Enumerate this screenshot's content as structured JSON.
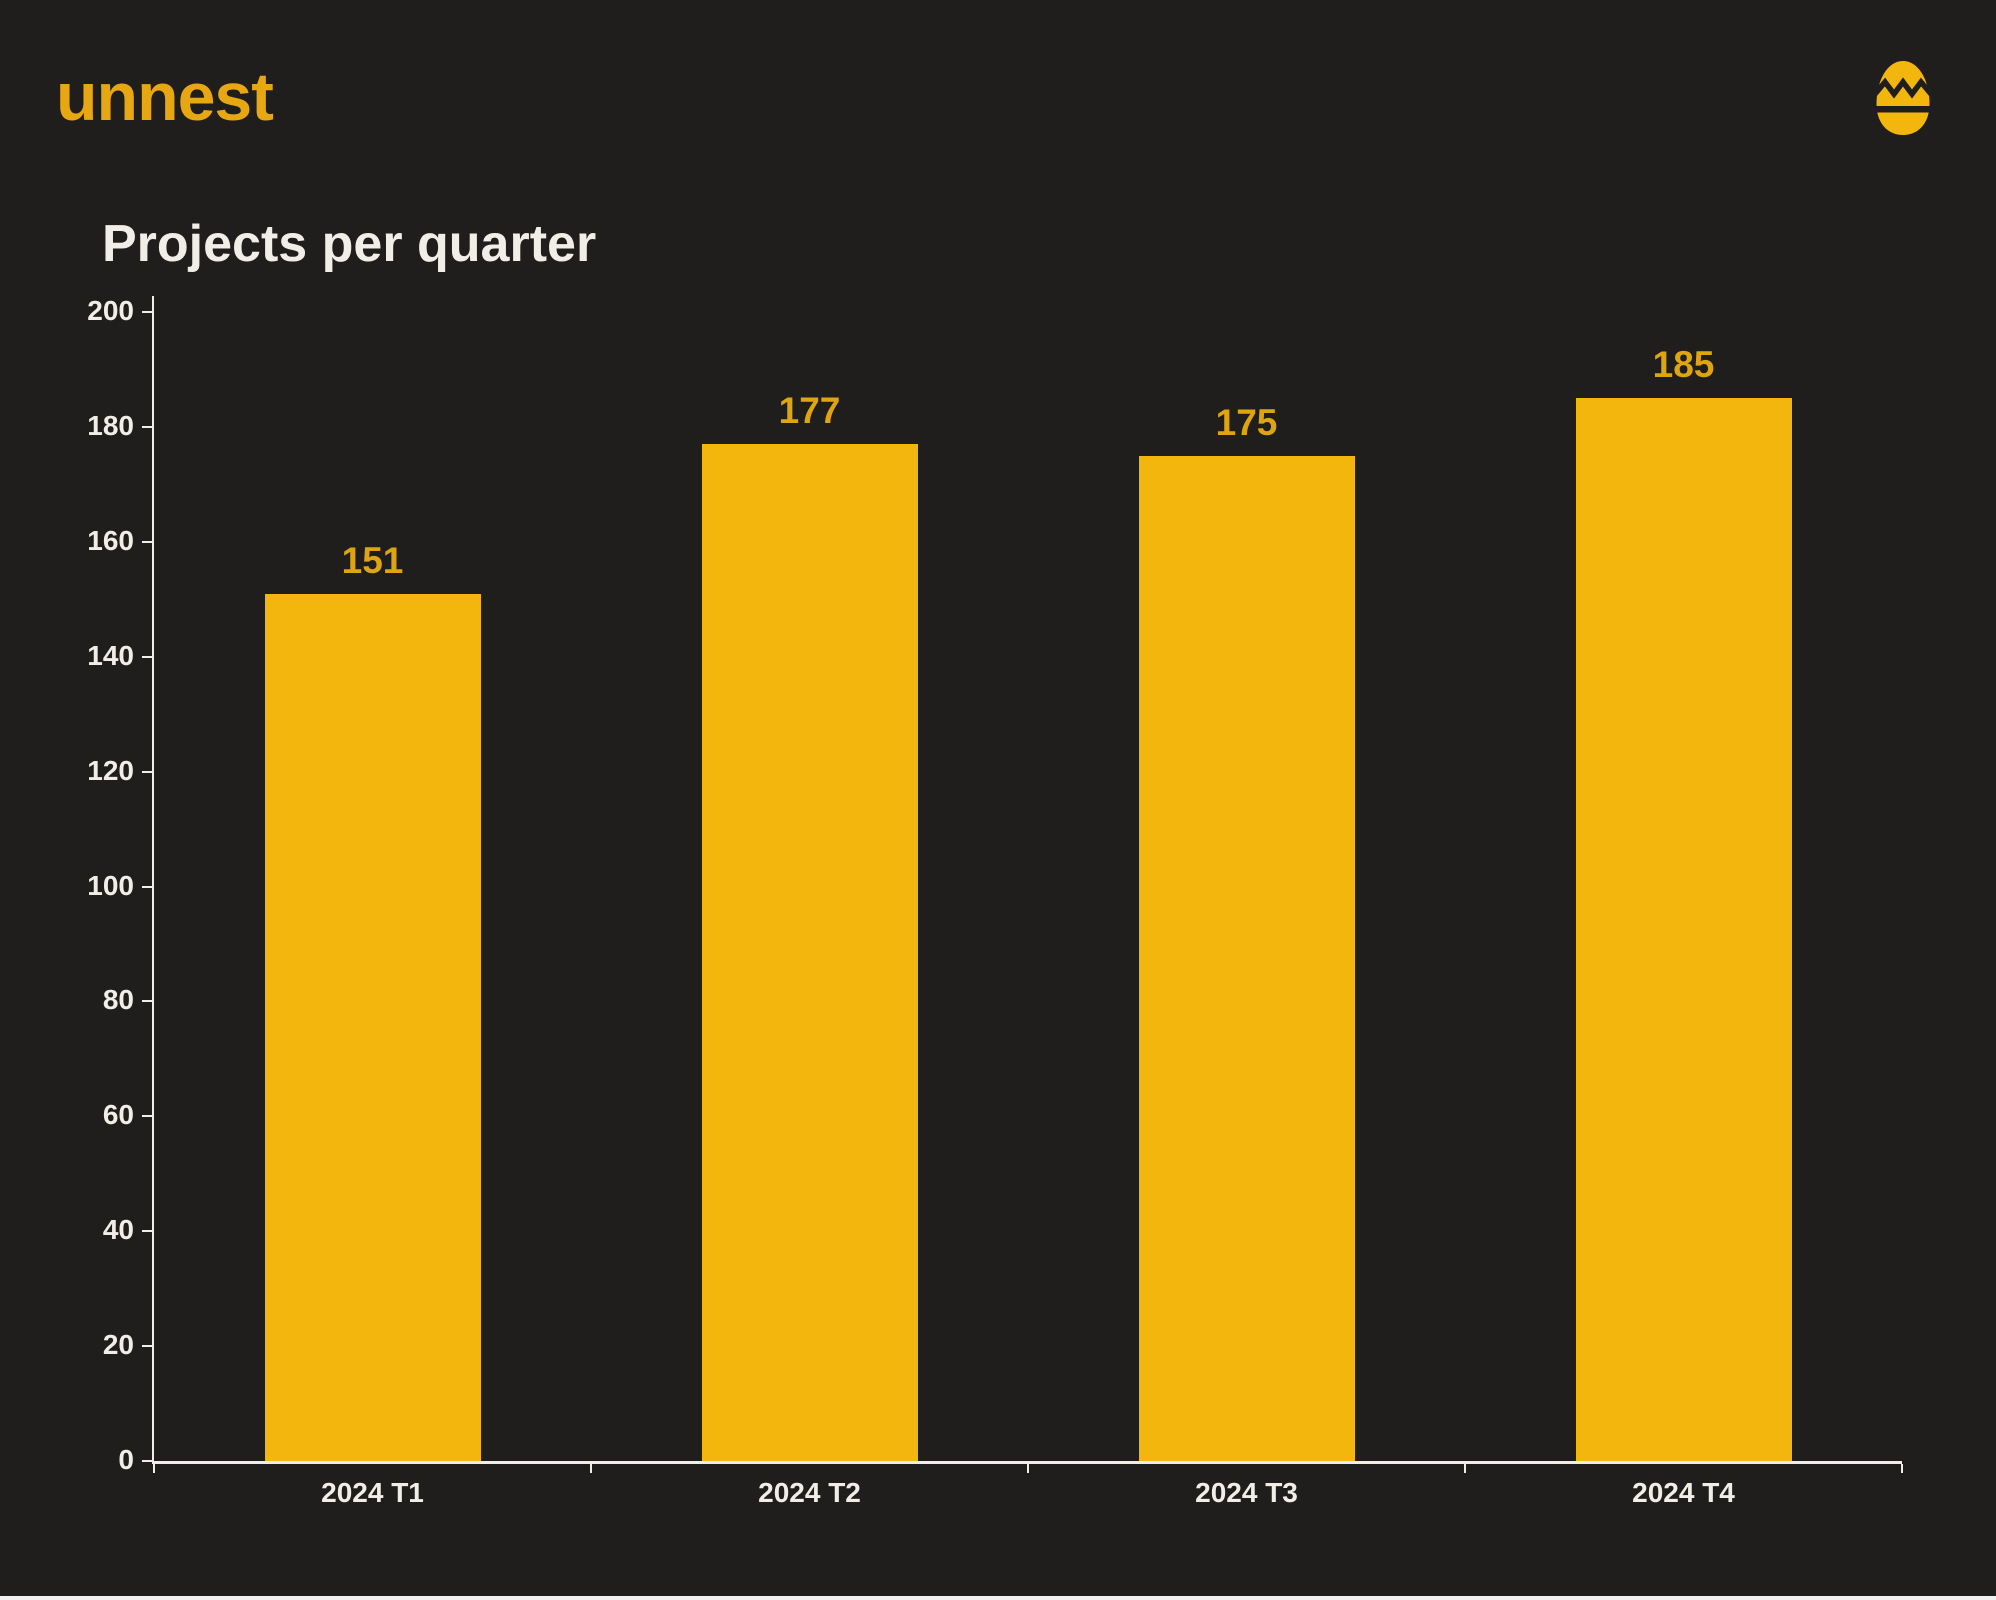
{
  "header": {
    "logo_text": "unnest"
  },
  "chart_data": {
    "type": "bar",
    "title": "Projects per quarter",
    "categories": [
      "2024 T1",
      "2024 T2",
      "2024 T3",
      "2024 T4"
    ],
    "values": [
      151,
      177,
      175,
      185
    ],
    "value_labels": [
      "151",
      "177",
      "175",
      "185"
    ],
    "xlabel": "",
    "ylabel": "",
    "ylim": [
      0,
      200
    ],
    "ytick_interval": 20,
    "ytick_labels": [
      "0",
      "20",
      "40",
      "60",
      "80",
      "100",
      "120",
      "140",
      "160",
      "180",
      "200"
    ],
    "grid": false,
    "legend": "none",
    "colors": {
      "background": "#201E1D",
      "bar": "#F2B60D",
      "value_label": "#DEA511",
      "logo": "#E7A712",
      "axis_text": "#F1EEE8"
    }
  }
}
